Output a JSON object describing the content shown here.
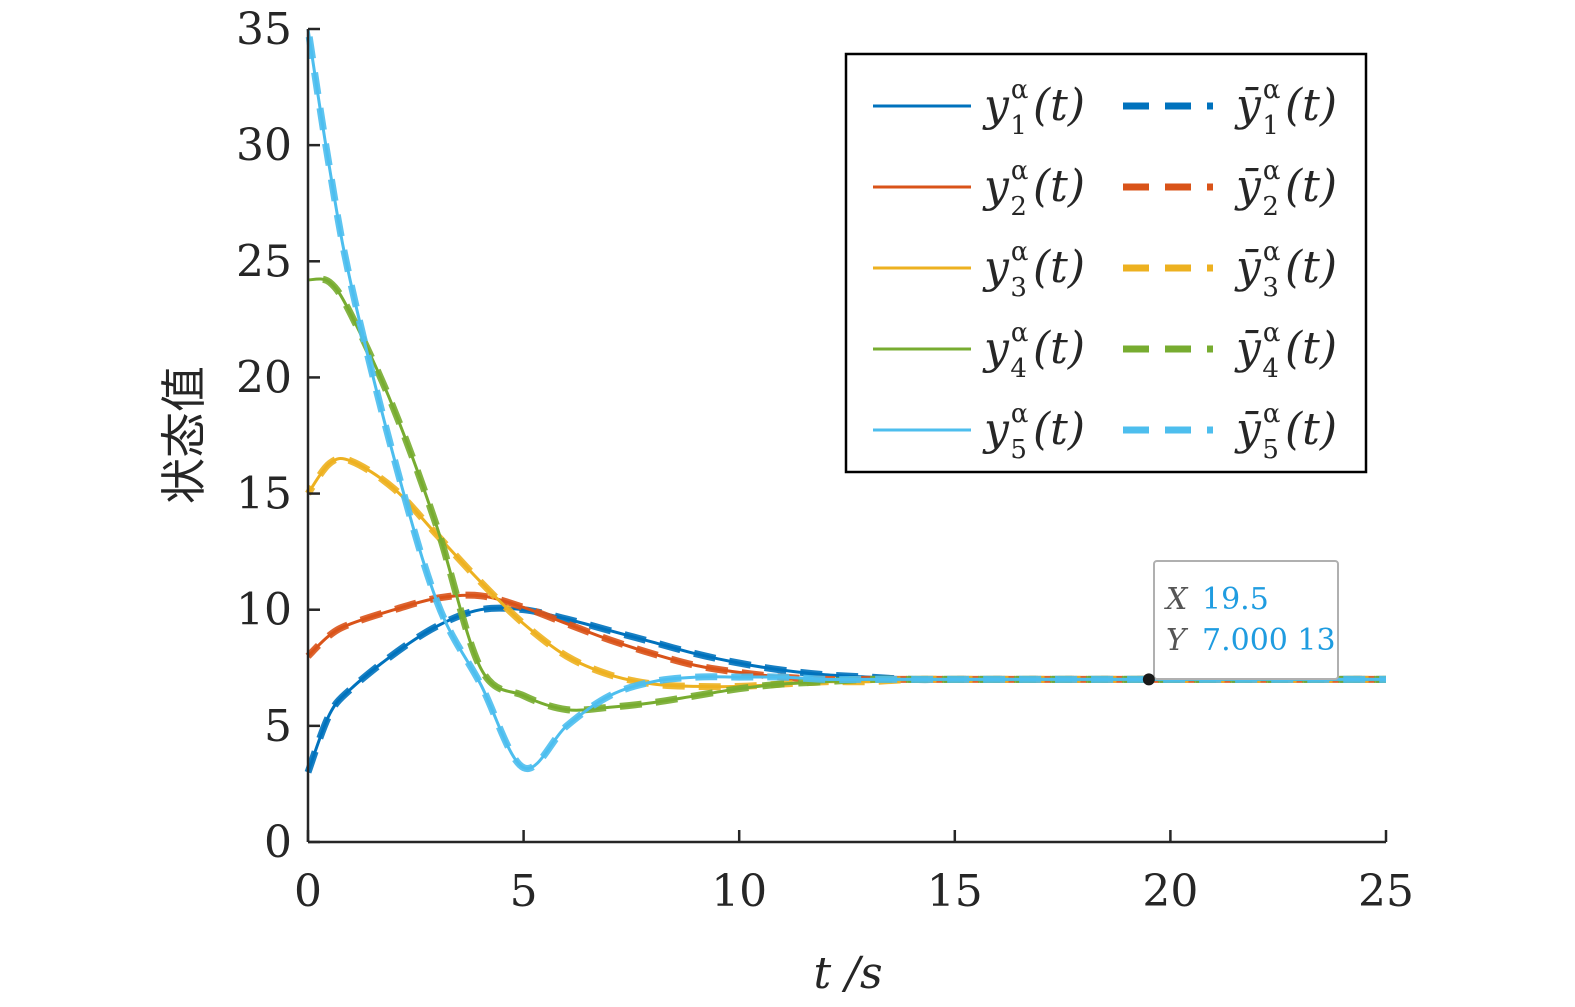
{
  "chart_data": {
    "type": "line",
    "xlabel": "t /s",
    "ylabel": "状态值",
    "xlim": [
      0,
      25
    ],
    "ylim": [
      0,
      35
    ],
    "xticks": [
      0,
      5,
      10,
      15,
      20,
      25
    ],
    "yticks": [
      0,
      5,
      10,
      15,
      20,
      25,
      30,
      35
    ],
    "grid": false,
    "legend_position": "top-right",
    "colors": [
      "#0072bd",
      "#d95319",
      "#edb120",
      "#77ac30",
      "#4dbeee"
    ],
    "legend": [
      {
        "solid": "y",
        "sub": "1",
        "dashed": "ȳ"
      },
      {
        "solid": "y",
        "sub": "2",
        "dashed": "ȳ"
      },
      {
        "solid": "y",
        "sub": "3",
        "dashed": "ȳ"
      },
      {
        "solid": "y",
        "sub": "4",
        "dashed": "ȳ"
      },
      {
        "solid": "y",
        "sub": "5",
        "dashed": "ȳ"
      }
    ],
    "legend_sup": "α",
    "legend_arg": "(t)",
    "x": [
      0,
      0.5,
      1,
      2,
      3,
      4,
      5,
      6,
      7,
      8,
      9,
      10,
      11,
      12,
      13,
      14,
      15,
      17,
      20,
      25
    ],
    "series": [
      {
        "name": "y1",
        "values": [
          3,
          5.5,
          6.6,
          8.1,
          9.3,
          10.0,
          10.0,
          9.6,
          9.1,
          8.6,
          8.1,
          7.7,
          7.4,
          7.2,
          7.1,
          7.0,
          7.0,
          7.0,
          7.0,
          7.0
        ]
      },
      {
        "name": "y2",
        "values": [
          8,
          8.9,
          9.4,
          10.0,
          10.5,
          10.6,
          10.1,
          9.4,
          8.7,
          8.1,
          7.6,
          7.3,
          7.1,
          7.0,
          7.0,
          7.0,
          7.0,
          7.0,
          7.0,
          7.0
        ]
      },
      {
        "name": "y3",
        "values": [
          15,
          16.3,
          16.4,
          15.2,
          13.2,
          11.2,
          9.4,
          8.0,
          7.2,
          6.8,
          6.7,
          6.7,
          6.8,
          6.9,
          6.9,
          7.0,
          7.0,
          7.0,
          7.0,
          7.0
        ]
      },
      {
        "name": "y4",
        "values": [
          24.2,
          24.1,
          22.7,
          18.6,
          13.5,
          7.5,
          6.3,
          5.7,
          5.8,
          6.0,
          6.3,
          6.6,
          6.8,
          6.9,
          7.0,
          7.0,
          7.0,
          7.0,
          7.0,
          7.0
        ]
      },
      {
        "name": "y5",
        "values": [
          35,
          29,
          24,
          16.5,
          10.3,
          6.8,
          3.2,
          5.0,
          6.3,
          6.9,
          7.1,
          7.1,
          7.1,
          7.0,
          7.0,
          7.0,
          7.0,
          7.0,
          7.0,
          7.0
        ]
      }
    ],
    "datatip": {
      "x_key": "X",
      "x_value": "19.5",
      "y_key": "Y",
      "y_value": "7.000 13",
      "x": 19.5,
      "y": 7.00013
    }
  }
}
